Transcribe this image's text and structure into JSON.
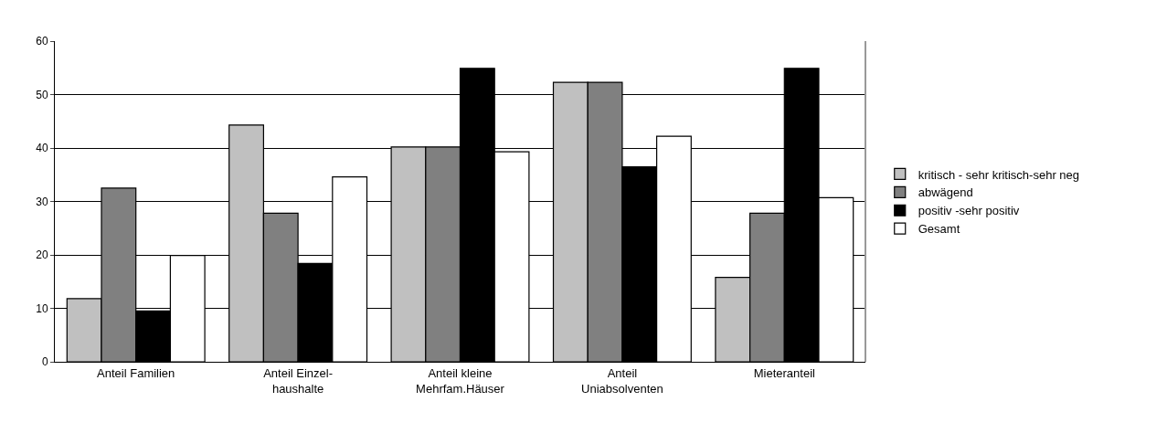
{
  "chart_data": {
    "type": "bar",
    "categories": [
      "Anteil Familien",
      "Anteil Einzel-\nhaushalte",
      "Anteil kleine\nMehrfam.Häuser",
      "Anteil\nUniabsolventen",
      "Mieteranteil"
    ],
    "series": [
      {
        "name": "kritisch - sehr kritisch-sehr neg",
        "color": "#c0c0c0",
        "values": [
          11.8,
          44.3,
          40.2,
          52.3,
          15.8
        ]
      },
      {
        "name": "abwägend",
        "color": "#808080",
        "values": [
          32.5,
          27.8,
          40.2,
          52.3,
          27.8
        ]
      },
      {
        "name": "positiv -sehr positiv",
        "color": "#000000",
        "values": [
          9.5,
          18.4,
          54.9,
          36.5,
          54.9
        ]
      },
      {
        "name": "Gesamt",
        "color": "#ffffff",
        "values": [
          19.9,
          34.6,
          39.3,
          42.2,
          30.7
        ]
      }
    ],
    "ylim": [
      0,
      60
    ],
    "yticks": [
      0,
      10,
      20,
      30,
      40,
      50,
      60
    ],
    "grid": "y",
    "legend": "right"
  }
}
